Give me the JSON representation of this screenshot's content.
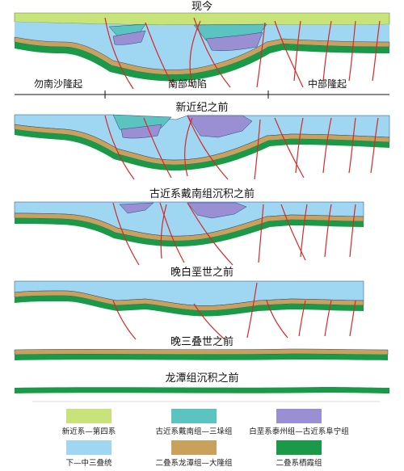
{
  "sections": [
    {
      "title": "现今"
    },
    {
      "title": "新近纪之前"
    },
    {
      "title": "古近系戴南组沉积之前"
    },
    {
      "title": "晚白垩世之前"
    },
    {
      "title": "晚三叠世之前"
    },
    {
      "title": "龙潭组沉积之前"
    }
  ],
  "regions": [
    "勿南沙隆起",
    "南部坳陷",
    "中部隆起"
  ],
  "legend": [
    {
      "label": "新近系—第四系",
      "color": "#c8e37a"
    },
    {
      "label": "古近系戴南组—三垛组",
      "color": "#5cc4c0"
    },
    {
      "label": "白垩系泰州组—古近系阜宁组",
      "color": "#9b8fd4"
    },
    {
      "label": "下—中三叠统",
      "color": "#9fd6f2"
    },
    {
      "label": "二叠系龙潭组—大隆组",
      "color": "#c9a15a"
    },
    {
      "label": "二叠系栖霞组",
      "color": "#1a9a48"
    }
  ],
  "colors": {
    "neogene": "#c8e37a",
    "dainan": "#5cc4c0",
    "taizhou": "#9b8fd4",
    "triassic": "#9fd6f2",
    "longtan": "#c9a15a",
    "qixia": "#1a9a48",
    "fault": "#d42a2a",
    "outline": "#1e4a7a"
  }
}
